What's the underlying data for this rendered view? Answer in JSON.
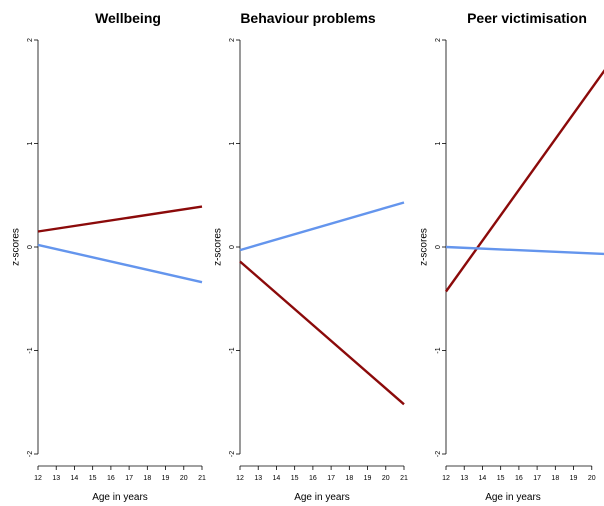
{
  "chart_data": [
    {
      "type": "line",
      "title": "Wellbeing",
      "xlabel": "Age in years",
      "ylabel": "z-scores",
      "xlim": [
        12,
        21
      ],
      "ylim": [
        -2,
        2
      ],
      "x_ticks": [
        "12",
        "13",
        "14",
        "15",
        "16",
        "17",
        "18",
        "19",
        "20",
        "21"
      ],
      "y_ticks": [
        "2",
        "1",
        "0",
        "-1",
        "-2"
      ],
      "series": [
        {
          "color": "#8b0a0a",
          "x": [
            12,
            21
          ],
          "y": [
            0.15,
            0.39
          ]
        },
        {
          "color": "#6495ed",
          "x": [
            12,
            21
          ],
          "y": [
            0.02,
            -0.34
          ]
        }
      ]
    },
    {
      "type": "line",
      "title": "Behaviour problems",
      "xlabel": "Age in years",
      "ylabel": "z-scores",
      "xlim": [
        12,
        21
      ],
      "ylim": [
        -2,
        2
      ],
      "x_ticks": [
        "12",
        "13",
        "14",
        "15",
        "16",
        "17",
        "18",
        "19",
        "20",
        "21"
      ],
      "y_ticks": [
        "2",
        "1",
        "0",
        "-1",
        "-2"
      ],
      "series": [
        {
          "color": "#8b0a0a",
          "x": [
            12,
            21
          ],
          "y": [
            -0.14,
            -1.52
          ]
        },
        {
          "color": "#6495ed",
          "x": [
            12,
            21
          ],
          "y": [
            -0.03,
            0.43
          ]
        }
      ]
    },
    {
      "type": "line",
      "title": "Peer victimisation",
      "xlabel": "Age in years",
      "ylabel": "z-scores",
      "xlim": [
        12,
        21
      ],
      "ylim": [
        -2,
        2
      ],
      "x_ticks": [
        "12",
        "13",
        "14",
        "15",
        "16",
        "17",
        "18",
        "19",
        "20"
      ],
      "y_ticks": [
        "2",
        "1",
        "0",
        "-1",
        "-2"
      ],
      "series": [
        {
          "color": "#8b0a0a",
          "x": [
            12,
            21
          ],
          "y": [
            -0.43,
            1.78
          ]
        },
        {
          "color": "#6495ed",
          "x": [
            12,
            21
          ],
          "y": [
            0.0,
            -0.07
          ]
        }
      ]
    }
  ]
}
